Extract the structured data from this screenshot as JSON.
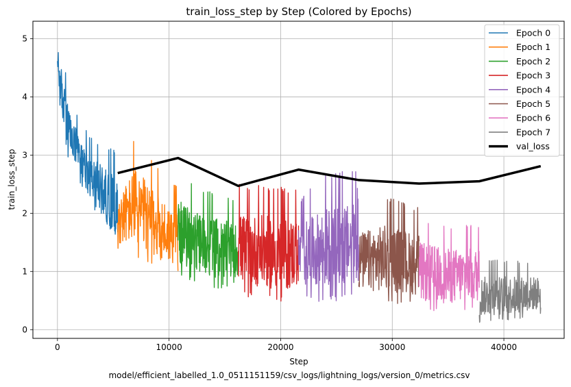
{
  "chart_data": {
    "type": "line",
    "title": "train_loss_step by Step (Colored by Epochs)",
    "xlabel": "Step",
    "ylabel": "train_loss_step",
    "caption": "model/efficient_labelled_1.0_0511151159/csv_logs/lightning_logs/version_0/metrics.csv",
    "xlim": [
      -2200,
      45400
    ],
    "ylim": [
      -0.15,
      5.3
    ],
    "xticks": [
      0,
      10000,
      20000,
      30000,
      40000
    ],
    "yticks": [
      0,
      1,
      2,
      3,
      4,
      5
    ],
    "grid": true,
    "legend_position": "top-right",
    "series": [
      {
        "name": "Epoch 0",
        "color": "#1f77b4",
        "x_start": 0,
        "x_end": 5400,
        "envelope": [
          [
            0,
            4.3,
            5.05
          ],
          [
            400,
            3.5,
            4.8
          ],
          [
            1000,
            2.9,
            4.1
          ],
          [
            2000,
            2.5,
            3.6
          ],
          [
            3000,
            2.1,
            3.3
          ],
          [
            4000,
            1.8,
            3.2
          ],
          [
            5000,
            1.45,
            3.1
          ],
          [
            5400,
            1.4,
            3.0
          ]
        ]
      },
      {
        "name": "Epoch 1",
        "color": "#ff7f0e",
        "x_start": 5400,
        "x_end": 10800,
        "envelope": [
          [
            5400,
            1.35,
            2.6
          ],
          [
            7000,
            1.25,
            3.37
          ],
          [
            8500,
            1.05,
            2.9
          ],
          [
            10000,
            0.95,
            2.6
          ],
          [
            10800,
            1.0,
            2.5
          ]
        ]
      },
      {
        "name": "Epoch 2",
        "color": "#2ca02c",
        "x_start": 10800,
        "x_end": 16200,
        "envelope": [
          [
            10800,
            0.95,
            2.7
          ],
          [
            12500,
            0.8,
            2.45
          ],
          [
            14500,
            0.7,
            2.35
          ],
          [
            16200,
            0.75,
            2.2
          ]
        ]
      },
      {
        "name": "Epoch 3",
        "color": "#d62728",
        "x_start": 16200,
        "x_end": 21600,
        "envelope": [
          [
            16200,
            0.6,
            2.5
          ],
          [
            18500,
            0.5,
            2.5
          ],
          [
            20500,
            0.45,
            2.45
          ],
          [
            21600,
            0.55,
            2.4
          ]
        ]
      },
      {
        "name": "Epoch 4",
        "color": "#9467bd",
        "x_start": 21600,
        "x_end": 27000,
        "envelope": [
          [
            21600,
            0.6,
            2.2
          ],
          [
            24000,
            0.45,
            2.7
          ],
          [
            26800,
            0.55,
            2.75
          ],
          [
            27000,
            0.6,
            2.0
          ]
        ]
      },
      {
        "name": "Epoch 5",
        "color": "#8c564b",
        "x_start": 27000,
        "x_end": 32400,
        "envelope": [
          [
            27000,
            0.5,
            2.1
          ],
          [
            29500,
            0.45,
            2.3
          ],
          [
            32400,
            0.4,
            2.1
          ]
        ]
      },
      {
        "name": "Epoch 6",
        "color": "#e377c2",
        "x_start": 32400,
        "x_end": 37800,
        "envelope": [
          [
            32400,
            0.3,
            1.95
          ],
          [
            35000,
            0.28,
            1.8
          ],
          [
            37800,
            0.32,
            1.8
          ]
        ]
      },
      {
        "name": "Epoch 7",
        "color": "#7f7f7f",
        "x_start": 37800,
        "x_end": 43300,
        "envelope": [
          [
            37800,
            0.12,
            1.2
          ],
          [
            40500,
            0.15,
            1.2
          ],
          [
            43300,
            0.25,
            1.15
          ]
        ]
      },
      {
        "name": "val_loss",
        "color": "#000000",
        "x": [
          5400,
          10800,
          16200,
          21600,
          27000,
          32400,
          37800,
          43300
        ],
        "y": [
          2.69,
          2.95,
          2.47,
          2.75,
          2.57,
          2.51,
          2.55,
          2.81
        ]
      }
    ]
  }
}
